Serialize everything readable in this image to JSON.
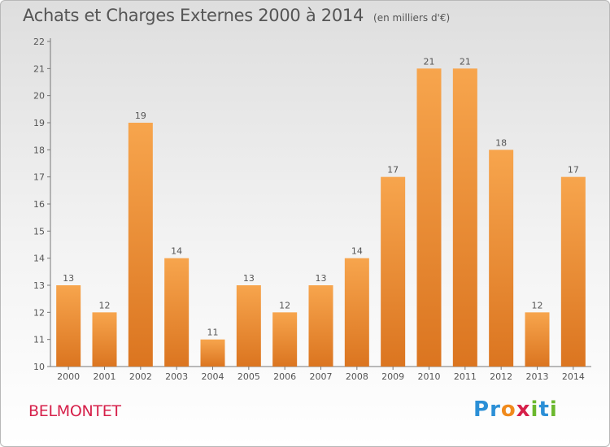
{
  "title": "Achats et Charges Externes 2000 à 2014",
  "unit": "(en milliers d'€)",
  "commune": "BELMONTET",
  "logo": {
    "text": "Proxiti",
    "letters": [
      {
        "ch": "P",
        "color": "#2b8fd6"
      },
      {
        "ch": "r",
        "color": "#2b8fd6"
      },
      {
        "ch": "o",
        "color": "#f08a1c"
      },
      {
        "ch": "x",
        "color": "#d6204a"
      },
      {
        "ch": "i",
        "color": "#6bb82e"
      },
      {
        "ch": "t",
        "color": "#2b8fd6"
      },
      {
        "ch": "i",
        "color": "#6bb82e"
      }
    ]
  },
  "colors": {
    "bar_light": "#f7a54d",
    "bar_dark": "#db7520",
    "text": "#555555"
  },
  "chart_data": {
    "type": "bar",
    "categories": [
      "2000",
      "2001",
      "2002",
      "2003",
      "2004",
      "2005",
      "2006",
      "2007",
      "2008",
      "2009",
      "2010",
      "2011",
      "2012",
      "2013",
      "2014"
    ],
    "values": [
      13,
      12,
      19,
      14,
      11,
      13,
      12,
      13,
      14,
      17,
      21,
      21,
      18,
      12,
      17
    ],
    "ylim": [
      10,
      22
    ],
    "yticks": [
      10,
      11,
      12,
      13,
      14,
      15,
      16,
      17,
      18,
      19,
      20,
      21,
      22
    ],
    "ytick_labels": [
      "10",
      "11",
      "12",
      "13",
      "14",
      "15",
      "16",
      "17",
      "18",
      "19",
      "20",
      "21",
      "22"
    ],
    "grid": false,
    "data_labels": true
  }
}
